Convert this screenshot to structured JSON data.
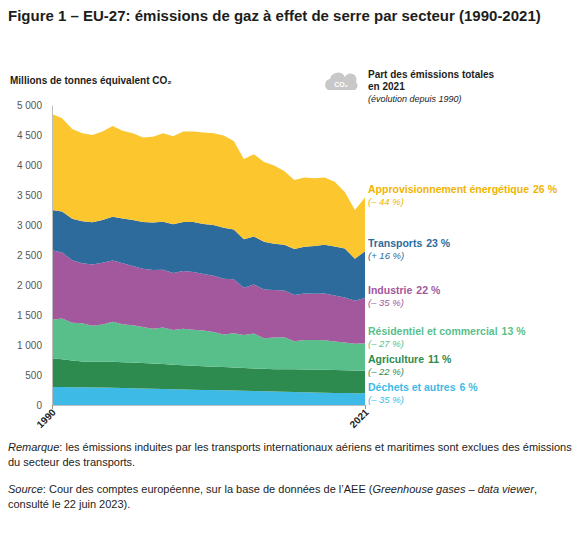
{
  "chart_data": {
    "type": "area",
    "stacked": true,
    "title": "Figure 1 – EU-27: émissions de gaz à effet de serre par secteur (1990-2021)",
    "y_label": "Millions de tonnes équivalent CO₂",
    "legend_title": [
      "Part des émissions totales",
      "en 2021"
    ],
    "legend_subtitle": "(évolution depuis 1990)",
    "icon_label": "CO₂",
    "remark": [
      "Remarque",
      ": les émissions induites par les transports internationaux aériens et maritimes sont exclues des émissions du secteur des transports."
    ],
    "source": [
      "Source",
      ": Cour des comptes européenne, sur la base de données de l’AEE (",
      "Greenhouse gases – data viewer",
      ", consulté le 22 juin 2023)."
    ],
    "x": [
      1990,
      1991,
      1992,
      1993,
      1994,
      1995,
      1996,
      1997,
      1998,
      1999,
      2000,
      2001,
      2002,
      2003,
      2004,
      2005,
      2006,
      2007,
      2008,
      2009,
      2010,
      2011,
      2012,
      2013,
      2014,
      2015,
      2016,
      2017,
      2018,
      2019,
      2020,
      2021
    ],
    "xlim": [
      1990,
      2021
    ],
    "xticks": [
      1990,
      2021
    ],
    "ylim": [
      0,
      5000
    ],
    "yticks": [
      0,
      500,
      {
        "value": 1000,
        "label": "1 000"
      },
      {
        "value": 1500,
        "label": "1 500"
      },
      {
        "value": 2000,
        "label": "2 000"
      },
      {
        "value": 2500,
        "label": "2 500"
      },
      {
        "value": 3000,
        "label": "3 000"
      },
      {
        "value": 3500,
        "label": "3 500"
      },
      {
        "value": 4000,
        "label": "4 000"
      },
      {
        "value": 4500,
        "label": "4 500"
      },
      {
        "value": 5000,
        "label": "5 000"
      }
    ],
    "grid": false,
    "series": [
      {
        "name": "Déchets et autres",
        "share_label": "6 %",
        "change_label": "(– 35 %)",
        "color": "#3dbbe6",
        "values": [
          300,
          298,
          296,
          294,
          292,
          290,
          287,
          284,
          280,
          276,
          272,
          268,
          264,
          260,
          256,
          252,
          248,
          244,
          240,
          236,
          232,
          228,
          224,
          220,
          216,
          212,
          208,
          205,
          202,
          199,
          196,
          195
        ]
      },
      {
        "name": "Agriculture",
        "share_label": "11 %",
        "change_label": "(– 22 %)",
        "color": "#2e8b4f",
        "values": [
          480,
          465,
          445,
          430,
          428,
          430,
          432,
          430,
          428,
          425,
          420,
          415,
          408,
          402,
          400,
          395,
          390,
          390,
          385,
          380,
          378,
          376,
          372,
          374,
          378,
          380,
          382,
          384,
          380,
          379,
          378,
          375
        ]
      },
      {
        "name": "Résidentiel et commercial",
        "share_label": "13 %",
        "change_label": "(– 27 %)",
        "color": "#58bf8b",
        "values": [
          640,
          680,
          630,
          640,
          600,
          620,
          670,
          630,
          620,
          600,
          580,
          610,
          580,
          610,
          600,
          595,
          580,
          540,
          570,
          550,
          580,
          510,
          530,
          535,
          470,
          490,
          495,
          490,
          475,
          465,
          445,
          460
        ]
      },
      {
        "name": "Industrie",
        "share_label": "22 %",
        "change_label": "(– 35 %)",
        "color": "#a3589d",
        "values": [
          1160,
          1100,
          1040,
          1000,
          1020,
          1030,
          1020,
          1020,
          990,
          970,
          980,
          960,
          950,
          960,
          960,
          940,
          935,
          930,
          900,
          790,
          820,
          810,
          790,
          780,
          770,
          775,
          770,
          780,
          770,
          750,
          720,
          754
        ]
      },
      {
        "name": "Transports",
        "share_label": "23 %",
        "change_label": "(+ 16 %)",
        "color": "#2d6b9c",
        "values": [
          670,
          680,
          695,
          700,
          705,
          715,
          730,
          745,
          765,
          780,
          790,
          800,
          810,
          820,
          835,
          835,
          845,
          850,
          830,
          805,
          800,
          795,
          770,
          760,
          765,
          780,
          795,
          810,
          815,
          815,
          700,
          777
        ]
      },
      {
        "name": "Approvisionnement énergétique",
        "share_label": "26 %",
        "change_label": "(– 44 %)",
        "color": "#fcc62f",
        "values": [
          1600,
          1557,
          1494,
          1466,
          1455,
          1475,
          1511,
          1461,
          1447,
          1409,
          1428,
          1477,
          1468,
          1508,
          1509,
          1523,
          1532,
          1536,
          1475,
          1339,
          1370,
          1331,
          1304,
          1231,
          1151,
          1153,
          1130,
          1121,
          1078,
          942,
          811,
          899
        ]
      }
    ]
  }
}
